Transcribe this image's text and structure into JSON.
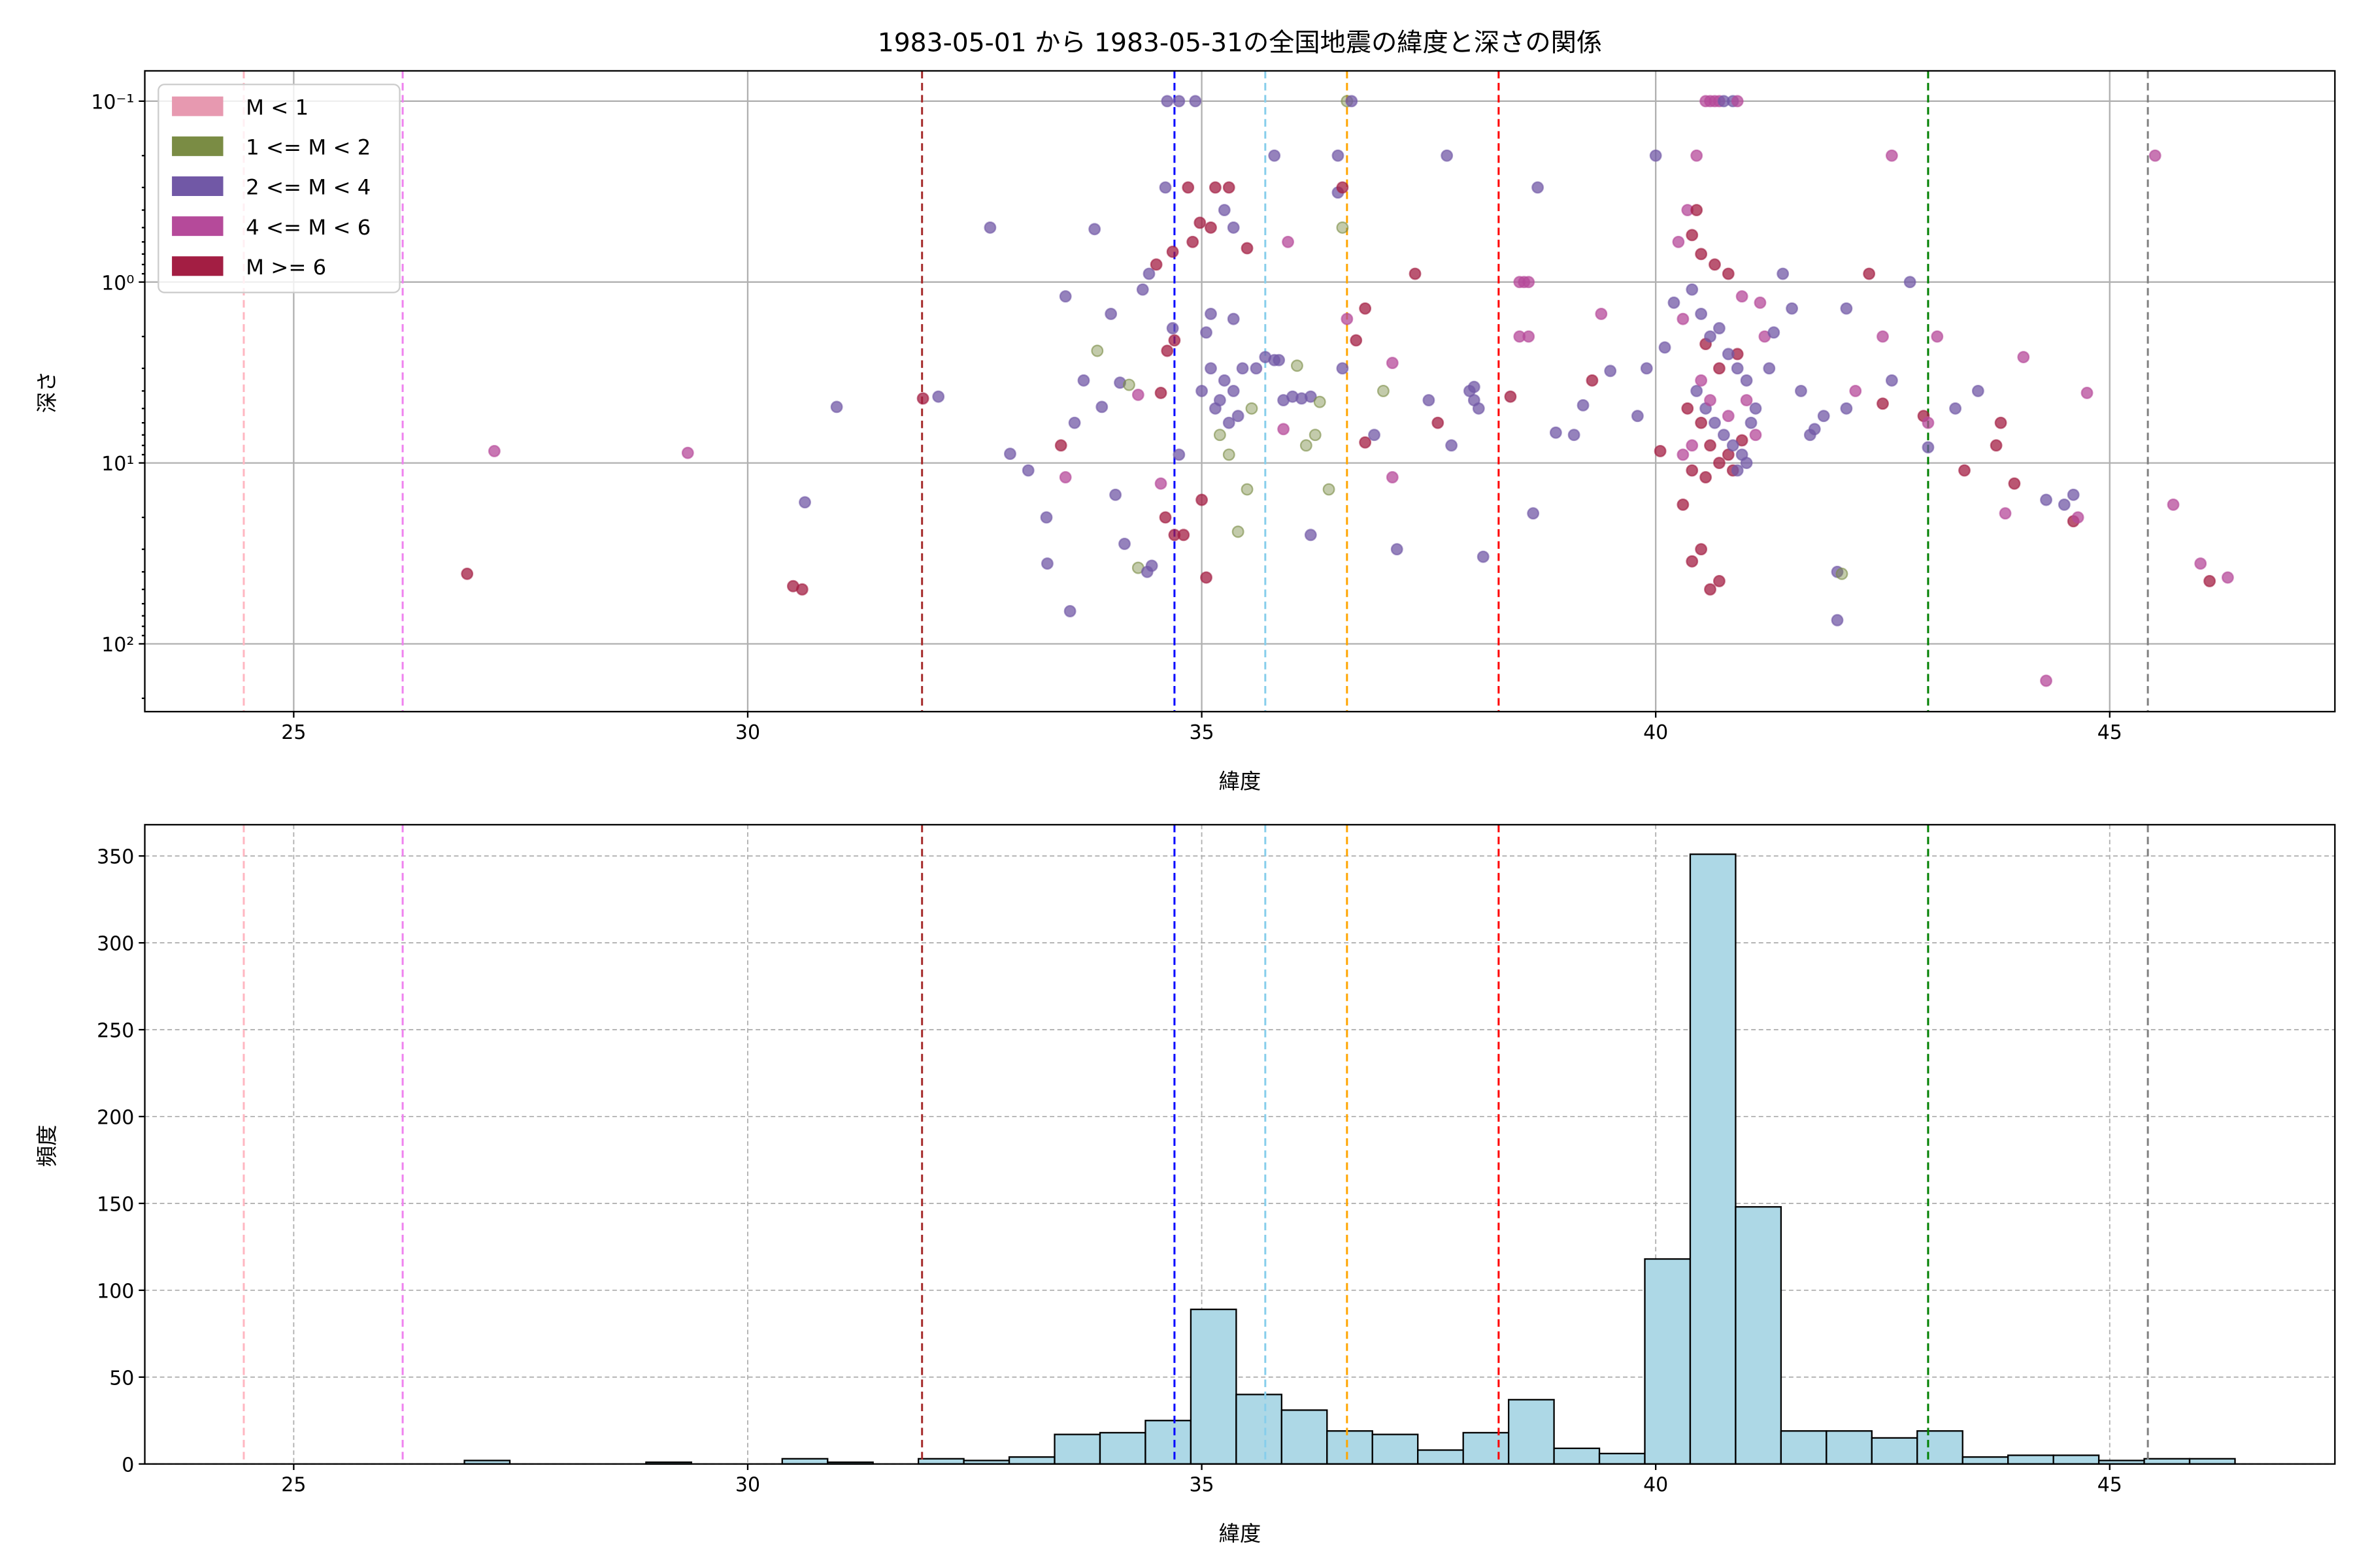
{
  "chart_data": [
    {
      "type": "scatter",
      "title": "1983-05-01 から 1983-05-31の全国地震の緯度と深さの関係",
      "xlabel": "緯度",
      "ylabel": "深さ",
      "xlim": [
        23.36,
        47.48
      ],
      "ylim": [
        0.068,
        237
      ],
      "yscale": "log",
      "yinverted": true,
      "xticks": [
        25,
        30,
        35,
        40,
        45
      ],
      "xtick_labels": [
        "25",
        "30",
        "35",
        "40",
        "45"
      ],
      "yticks": [
        0.1,
        1,
        10,
        100
      ],
      "ytick_labels": [
        "10⁻¹",
        "10⁰",
        "10¹",
        "10²"
      ],
      "grid": true,
      "legend_position": "top-left",
      "classes": [
        {
          "name": "M < 1",
          "color": "#e799b0"
        },
        {
          "name": "1 <= M < 2",
          "color": "#7a8c44"
        },
        {
          "name": "2 <= M < 4",
          "color": "#7158a6"
        },
        {
          "name": "4 <= M < 6",
          "color": "#b54a9a"
        },
        {
          "name": "M >= 6",
          "color": "#a31e43"
        }
      ],
      "points_format": [
        "latitude",
        "depth",
        "class_index"
      ],
      "points": [
        [
          27.21,
          8.6,
          3
        ],
        [
          26.91,
          41,
          4
        ],
        [
          29.34,
          8.8,
          3
        ],
        [
          30.5,
          48,
          4
        ],
        [
          30.6,
          50,
          4
        ],
        [
          30.63,
          16.5,
          2
        ],
        [
          30.98,
          4.9,
          2
        ],
        [
          31.93,
          4.4,
          4
        ],
        [
          32.1,
          4.3,
          2
        ],
        [
          32.67,
          0.5,
          2
        ],
        [
          32.89,
          8.9,
          2
        ],
        [
          33.09,
          11,
          2
        ],
        [
          33.29,
          20,
          2
        ],
        [
          33.3,
          36,
          2
        ],
        [
          33.55,
          66,
          2
        ],
        [
          33.5,
          1.2,
          2
        ],
        [
          33.5,
          12,
          3
        ],
        [
          33.45,
          8,
          4
        ],
        [
          33.82,
          0.51,
          2
        ],
        [
          33.7,
          3.5,
          2
        ],
        [
          33.6,
          6,
          2
        ],
        [
          33.9,
          4.9,
          2
        ],
        [
          33.85,
          2.4,
          1
        ],
        [
          34.0,
          1.5,
          2
        ],
        [
          34.1,
          3.6,
          2
        ],
        [
          34.2,
          3.7,
          1
        ],
        [
          34.05,
          15,
          2
        ],
        [
          34.15,
          28,
          2
        ],
        [
          34.3,
          4.2,
          3
        ],
        [
          34.3,
          38,
          1
        ],
        [
          34.4,
          40,
          2
        ],
        [
          34.45,
          37,
          2
        ],
        [
          34.35,
          1.1,
          2
        ],
        [
          34.42,
          0.9,
          2
        ],
        [
          34.5,
          0.8,
          4
        ],
        [
          34.6,
          0.3,
          2
        ],
        [
          34.75,
          0.1,
          2
        ],
        [
          34.62,
          0.1,
          2
        ],
        [
          34.93,
          0.1,
          2
        ],
        [
          34.68,
          0.68,
          4
        ],
        [
          34.7,
          2.1,
          4
        ],
        [
          34.62,
          2.4,
          4
        ],
        [
          34.68,
          1.8,
          2
        ],
        [
          34.55,
          4.1,
          4
        ],
        [
          34.55,
          13,
          3
        ],
        [
          34.6,
          20,
          4
        ],
        [
          34.7,
          25,
          4
        ],
        [
          34.8,
          25,
          4
        ],
        [
          34.75,
          9,
          2
        ],
        [
          34.85,
          0.3,
          4
        ],
        [
          34.9,
          0.6,
          4
        ],
        [
          34.98,
          0.47,
          4
        ],
        [
          35.0,
          16,
          4
        ],
        [
          35.05,
          43,
          4
        ],
        [
          35.1,
          0.5,
          4
        ],
        [
          35.15,
          0.3,
          4
        ],
        [
          35.3,
          0.3,
          4
        ],
        [
          35.35,
          1.6,
          2
        ],
        [
          35.35,
          0.5,
          2
        ],
        [
          35.25,
          0.4,
          2
        ],
        [
          35.5,
          0.65,
          4
        ],
        [
          35.1,
          1.5,
          2
        ],
        [
          35.05,
          1.9,
          2
        ],
        [
          35.0,
          4,
          2
        ],
        [
          35.1,
          3,
          2
        ],
        [
          35.15,
          5,
          2
        ],
        [
          35.2,
          4.5,
          2
        ],
        [
          35.25,
          3.5,
          2
        ],
        [
          35.3,
          6,
          2
        ],
        [
          35.35,
          4,
          2
        ],
        [
          35.4,
          5.5,
          2
        ],
        [
          35.45,
          3,
          2
        ],
        [
          35.2,
          7,
          1
        ],
        [
          35.3,
          9,
          1
        ],
        [
          35.5,
          14,
          1
        ],
        [
          35.4,
          24,
          1
        ],
        [
          35.55,
          5,
          1
        ],
        [
          35.6,
          3,
          2
        ],
        [
          35.7,
          2.6,
          2
        ],
        [
          35.8,
          2.7,
          2
        ],
        [
          35.9,
          4.5,
          2
        ],
        [
          36.0,
          4.3,
          2
        ],
        [
          36.1,
          4.4,
          2
        ],
        [
          36.2,
          4.3,
          2
        ],
        [
          36.3,
          4.6,
          1
        ],
        [
          36.15,
          8,
          1
        ],
        [
          36.25,
          7,
          1
        ],
        [
          36.4,
          14,
          1
        ],
        [
          36.2,
          25,
          2
        ],
        [
          35.9,
          6.5,
          3
        ],
        [
          35.95,
          0.6,
          3
        ],
        [
          35.8,
          0.2,
          2
        ],
        [
          35.85,
          2.7,
          2
        ],
        [
          36.05,
          2.9,
          1
        ],
        [
          36.6,
          0.1,
          1
        ],
        [
          36.65,
          0.1,
          2
        ],
        [
          36.5,
          0.2,
          2
        ],
        [
          36.5,
          0.32,
          2
        ],
        [
          36.55,
          0.3,
          4
        ],
        [
          36.55,
          0.5,
          1
        ],
        [
          36.6,
          1.6,
          3
        ],
        [
          36.55,
          3,
          2
        ],
        [
          36.7,
          2.1,
          4
        ],
        [
          36.8,
          1.4,
          4
        ],
        [
          36.8,
          7.7,
          4
        ],
        [
          36.9,
          7,
          2
        ],
        [
          37.0,
          4,
          1
        ],
        [
          37.1,
          2.8,
          3
        ],
        [
          37.15,
          30,
          2
        ],
        [
          37.1,
          12,
          3
        ],
        [
          37.35,
          0.9,
          4
        ],
        [
          37.5,
          4.5,
          2
        ],
        [
          37.6,
          6,
          4
        ],
        [
          37.7,
          0.2,
          2
        ],
        [
          37.75,
          8,
          2
        ],
        [
          37.95,
          4,
          2
        ],
        [
          38.0,
          4.5,
          2
        ],
        [
          38.05,
          5,
          2
        ],
        [
          38.0,
          3.8,
          2
        ],
        [
          38.1,
          33,
          2
        ],
        [
          38.4,
          4.3,
          4
        ],
        [
          38.5,
          1,
          3
        ],
        [
          38.55,
          1,
          3
        ],
        [
          38.6,
          1,
          3
        ],
        [
          38.5,
          2,
          3
        ],
        [
          38.6,
          2,
          3
        ],
        [
          38.65,
          19,
          2
        ],
        [
          38.7,
          0.3,
          2
        ],
        [
          38.9,
          6.8,
          2
        ],
        [
          39.1,
          7,
          2
        ],
        [
          39.2,
          4.8,
          2
        ],
        [
          39.3,
          3.5,
          4
        ],
        [
          39.4,
          1.5,
          3
        ],
        [
          39.5,
          3.1,
          2
        ],
        [
          39.8,
          5.5,
          2
        ],
        [
          39.9,
          3,
          2
        ],
        [
          40.0,
          0.2,
          2
        ],
        [
          40.05,
          8.6,
          4
        ],
        [
          40.1,
          2.3,
          2
        ],
        [
          40.2,
          1.3,
          2
        ],
        [
          40.25,
          0.6,
          3
        ],
        [
          40.3,
          1.6,
          3
        ],
        [
          40.35,
          0.4,
          3
        ],
        [
          40.45,
          0.2,
          3
        ],
        [
          40.55,
          0.1,
          3
        ],
        [
          40.6,
          0.1,
          3
        ],
        [
          40.65,
          0.1,
          3
        ],
        [
          40.7,
          0.1,
          3
        ],
        [
          40.75,
          0.1,
          2
        ],
        [
          40.85,
          0.1,
          2
        ],
        [
          40.9,
          0.1,
          3
        ],
        [
          40.45,
          0.4,
          4
        ],
        [
          40.4,
          0.55,
          4
        ],
        [
          40.5,
          0.7,
          4
        ],
        [
          40.65,
          0.8,
          4
        ],
        [
          40.8,
          0.9,
          4
        ],
        [
          40.55,
          2.2,
          4
        ],
        [
          40.7,
          3,
          4
        ],
        [
          40.9,
          2.5,
          4
        ],
        [
          40.35,
          5,
          4
        ],
        [
          40.5,
          6,
          4
        ],
        [
          40.6,
          8,
          4
        ],
        [
          40.8,
          9,
          4
        ],
        [
          40.95,
          7.5,
          4
        ],
        [
          40.4,
          11,
          4
        ],
        [
          40.55,
          12,
          4
        ],
        [
          40.7,
          10,
          4
        ],
        [
          40.85,
          11,
          4
        ],
        [
          40.3,
          17,
          4
        ],
        [
          40.4,
          35,
          4
        ],
        [
          40.5,
          30,
          4
        ],
        [
          40.6,
          50,
          4
        ],
        [
          40.7,
          45,
          4
        ],
        [
          40.4,
          1.1,
          2
        ],
        [
          40.5,
          1.5,
          2
        ],
        [
          40.6,
          2,
          2
        ],
        [
          40.7,
          1.8,
          2
        ],
        [
          40.8,
          2.5,
          2
        ],
        [
          40.9,
          3,
          2
        ],
        [
          41.0,
          3.5,
          2
        ],
        [
          40.45,
          4,
          2
        ],
        [
          40.55,
          5,
          2
        ],
        [
          40.65,
          6,
          2
        ],
        [
          40.75,
          7,
          2
        ],
        [
          40.85,
          8,
          2
        ],
        [
          40.95,
          9,
          2
        ],
        [
          41.05,
          6,
          2
        ],
        [
          41.1,
          5,
          2
        ],
        [
          41.0,
          10,
          2
        ],
        [
          40.9,
          11,
          2
        ],
        [
          40.4,
          8,
          3
        ],
        [
          40.5,
          3.5,
          3
        ],
        [
          40.6,
          4.5,
          3
        ],
        [
          40.8,
          5.5,
          3
        ],
        [
          41.0,
          4.5,
          3
        ],
        [
          41.1,
          7,
          3
        ],
        [
          40.3,
          9,
          3
        ],
        [
          40.95,
          1.2,
          3
        ],
        [
          41.15,
          1.3,
          3
        ],
        [
          41.2,
          2,
          3
        ],
        [
          41.25,
          3,
          2
        ],
        [
          41.3,
          1.9,
          2
        ],
        [
          41.4,
          0.9,
          2
        ],
        [
          41.5,
          1.4,
          2
        ],
        [
          41.6,
          4,
          2
        ],
        [
          41.7,
          7,
          2
        ],
        [
          41.75,
          6.5,
          2
        ],
        [
          41.85,
          5.5,
          2
        ],
        [
          42.0,
          40,
          2
        ],
        [
          42.05,
          41,
          1
        ],
        [
          42.0,
          74,
          2
        ],
        [
          42.1,
          1.4,
          2
        ],
        [
          42.1,
          5,
          2
        ],
        [
          42.2,
          4,
          3
        ],
        [
          42.35,
          0.9,
          4
        ],
        [
          42.5,
          4.7,
          4
        ],
        [
          42.5,
          2,
          3
        ],
        [
          42.6,
          0.2,
          3
        ],
        [
          42.6,
          3.5,
          2
        ],
        [
          42.8,
          1,
          2
        ],
        [
          42.95,
          5.5,
          4
        ],
        [
          43.0,
          6,
          3
        ],
        [
          43.0,
          8.2,
          2
        ],
        [
          43.1,
          2,
          3
        ],
        [
          43.3,
          5,
          2
        ],
        [
          43.4,
          11,
          4
        ],
        [
          43.55,
          4,
          2
        ],
        [
          43.75,
          8,
          4
        ],
        [
          43.8,
          6,
          4
        ],
        [
          43.85,
          19,
          3
        ],
        [
          43.95,
          13,
          4
        ],
        [
          44.05,
          2.6,
          3
        ],
        [
          44.3,
          160,
          3
        ],
        [
          44.3,
          16,
          2
        ],
        [
          44.5,
          17,
          2
        ],
        [
          44.6,
          15,
          2
        ],
        [
          44.6,
          21,
          4
        ],
        [
          44.65,
          20,
          3
        ],
        [
          44.75,
          4.1,
          3
        ],
        [
          45.5,
          0.2,
          3
        ],
        [
          45.7,
          17,
          3
        ],
        [
          46.0,
          36,
          3
        ],
        [
          46.1,
          45,
          4
        ],
        [
          46.3,
          43,
          3
        ]
      ]
    },
    {
      "type": "bar",
      "subtype": "histogram",
      "xlabel": "緯度",
      "ylabel": "頻度",
      "xlim": [
        23.36,
        47.48
      ],
      "ylim": [
        0,
        368
      ],
      "xticks": [
        25,
        30,
        35,
        40,
        45
      ],
      "xtick_labels": [
        "25",
        "30",
        "35",
        "40",
        "45"
      ],
      "yticks": [
        0,
        50,
        100,
        150,
        200,
        250,
        300,
        350
      ],
      "ytick_labels": [
        "0",
        "50",
        "100",
        "150",
        "200",
        "250",
        "300",
        "350"
      ],
      "grid": true,
      "bar_color": "#add8e6",
      "bin_start": 26.88,
      "bin_width": 0.5,
      "counts": [
        2,
        0,
        0,
        0,
        1,
        0,
        0,
        3,
        1,
        0,
        3,
        2,
        4,
        17,
        18,
        25,
        89,
        40,
        31,
        19,
        17,
        8,
        18,
        37,
        9,
        6,
        118,
        351,
        148,
        19,
        19,
        15,
        19,
        4,
        5,
        5,
        2,
        3,
        3
      ]
    }
  ],
  "reference_lines": [
    {
      "latitude": 24.45,
      "color": "#ffb6c1"
    },
    {
      "latitude": 26.2,
      "color": "#ee82ee"
    },
    {
      "latitude": 31.92,
      "color": "#a52a2a"
    },
    {
      "latitude": 34.7,
      "color": "#0000ff"
    },
    {
      "latitude": 35.7,
      "color": "#87ceeb"
    },
    {
      "latitude": 36.6,
      "color": "#ffa500"
    },
    {
      "latitude": 38.27,
      "color": "#ff0000"
    },
    {
      "latitude": 43.0,
      "color": "#008000"
    },
    {
      "latitude": 45.42,
      "color": "#808080"
    }
  ]
}
